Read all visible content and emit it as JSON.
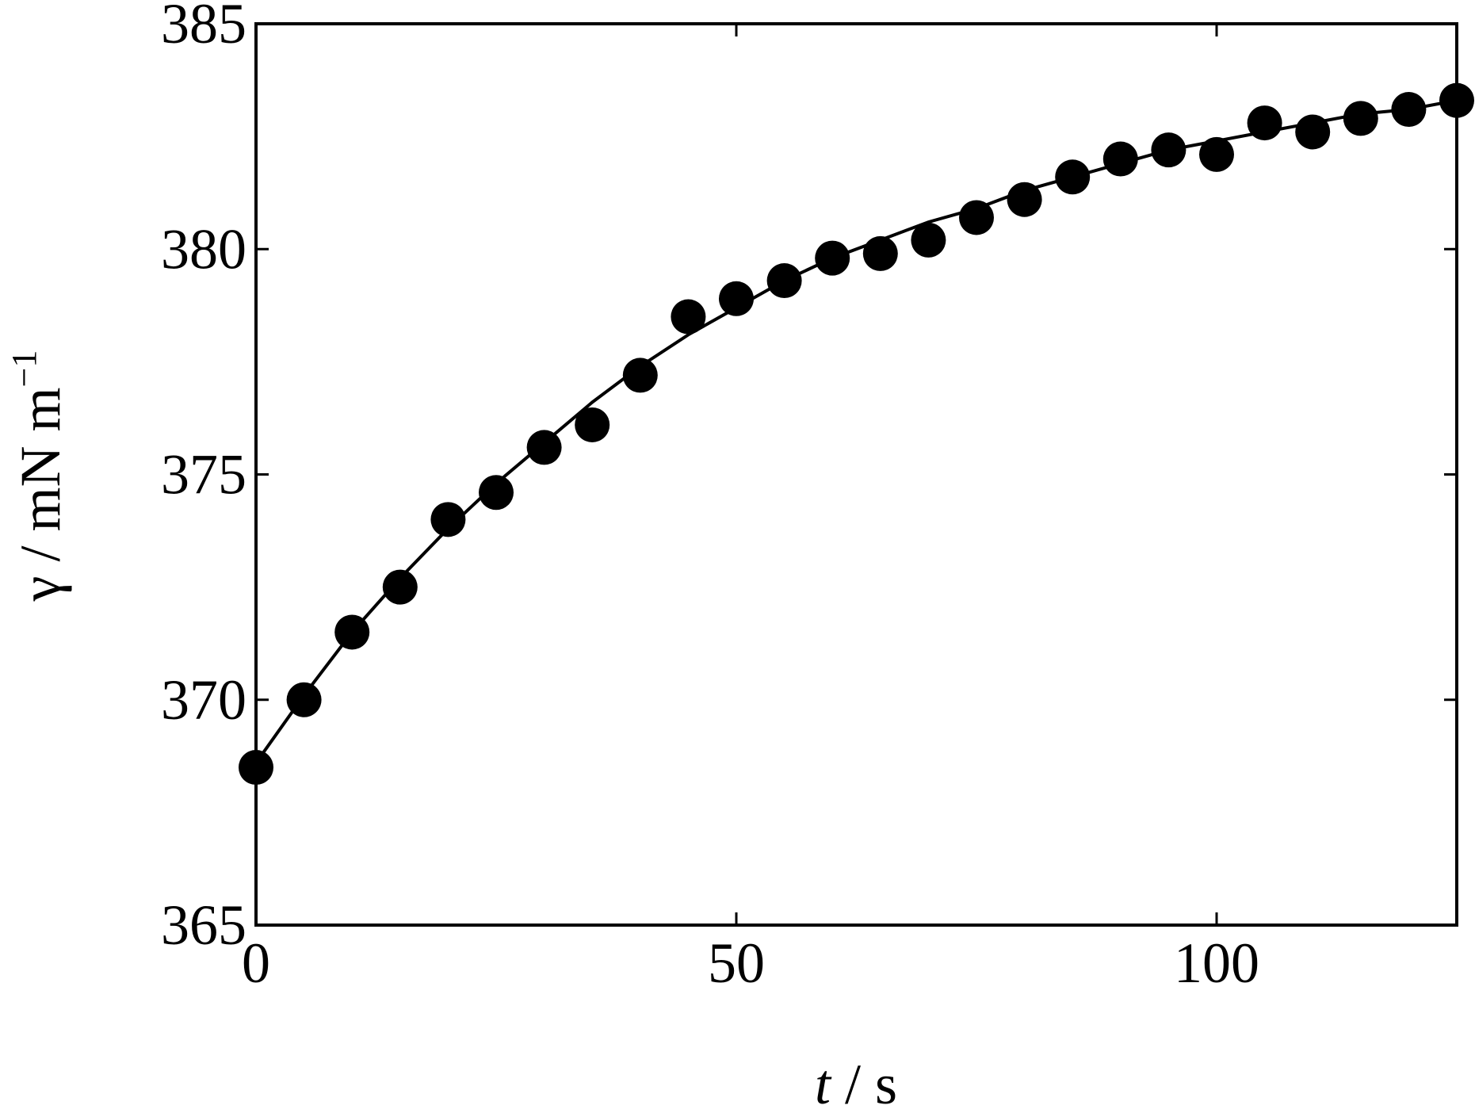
{
  "chart_data": {
    "type": "scatter",
    "xlabel_italic": "t",
    "xlabel_rest": " / s",
    "ylabel_main": "γ / mN m",
    "ylabel_sup": "−1",
    "xlim": [
      0,
      125
    ],
    "ylim": [
      365,
      385
    ],
    "x_ticks": [
      0,
      50,
      100
    ],
    "y_ticks": [
      365,
      370,
      375,
      380,
      385
    ],
    "grid": false,
    "legend": "none",
    "marker_color": "#000000",
    "series": [
      {
        "marker": "filled-circle",
        "points": [
          [
            0,
            368.5
          ],
          [
            5,
            370.0
          ],
          [
            10,
            371.5
          ],
          [
            15,
            372.5
          ],
          [
            20,
            374.0
          ],
          [
            25,
            374.6
          ],
          [
            30,
            375.6
          ],
          [
            35,
            376.1
          ],
          [
            40,
            377.2
          ],
          [
            45,
            378.5
          ],
          [
            50,
            378.9
          ],
          [
            55,
            379.3
          ],
          [
            60,
            379.8
          ],
          [
            65,
            379.9
          ],
          [
            70,
            380.2
          ],
          [
            75,
            380.7
          ],
          [
            80,
            381.1
          ],
          [
            85,
            381.6
          ],
          [
            90,
            382.0
          ],
          [
            95,
            382.2
          ],
          [
            100,
            382.1
          ],
          [
            105,
            382.8
          ],
          [
            110,
            382.6
          ],
          [
            115,
            382.9
          ],
          [
            120,
            383.1
          ],
          [
            125,
            383.3
          ]
        ]
      },
      {
        "style": "solid-line",
        "points": [
          [
            0,
            368.6
          ],
          [
            5,
            370.1
          ],
          [
            10,
            371.5
          ],
          [
            15,
            372.7
          ],
          [
            20,
            373.8
          ],
          [
            25,
            374.8
          ],
          [
            30,
            375.7
          ],
          [
            35,
            376.6
          ],
          [
            40,
            377.4
          ],
          [
            45,
            378.1
          ],
          [
            50,
            378.7
          ],
          [
            55,
            379.3
          ],
          [
            60,
            379.8
          ],
          [
            65,
            380.2
          ],
          [
            70,
            380.6
          ],
          [
            75,
            380.9
          ],
          [
            80,
            381.3
          ],
          [
            85,
            381.6
          ],
          [
            90,
            381.9
          ],
          [
            95,
            382.2
          ],
          [
            100,
            382.4
          ],
          [
            105,
            382.6
          ],
          [
            110,
            382.8
          ],
          [
            115,
            383.0
          ],
          [
            120,
            383.1
          ],
          [
            125,
            383.3
          ]
        ]
      }
    ]
  }
}
